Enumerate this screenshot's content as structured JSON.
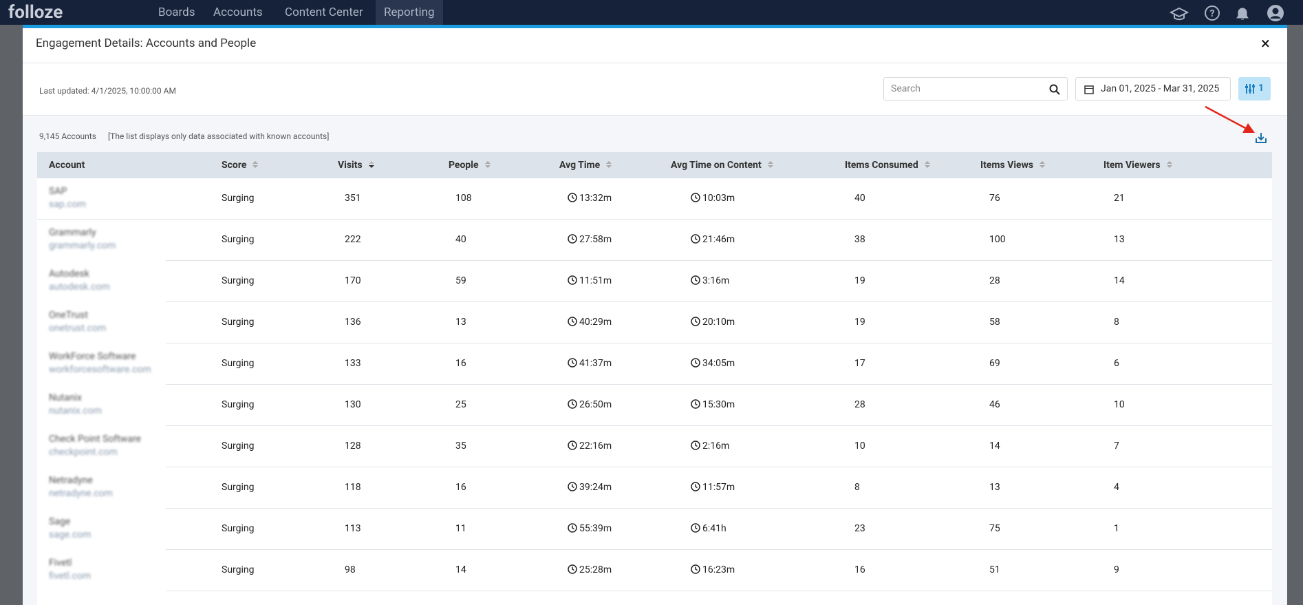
{
  "nav": {
    "logo": "folloze",
    "items": [
      "Boards",
      "Accounts",
      "Content Center",
      "Reporting"
    ],
    "active": 3
  },
  "modal": {
    "title": "Engagement Details: Accounts and People",
    "close": "×",
    "last_updated": "Last updated: 4/1/2025, 10:00:00 AM",
    "search_placeholder": "Search",
    "date_range": "Jan 01, 2025 - Mar 31, 2025",
    "filter_count": "1",
    "account_count": "9,145 Accounts",
    "note": "[The list displays only data associated with known accounts]"
  },
  "table": {
    "columns": [
      "Account",
      "Score",
      "Visits",
      "People",
      "Avg Time",
      "Avg Time on Content",
      "Items Consumed",
      "Items Views",
      "Item Viewers"
    ],
    "sorted_column": 2,
    "rows": [
      [
        "SAP",
        "sap.com",
        "Surging",
        351,
        108,
        "13:32m",
        "10:03m",
        40,
        76,
        21
      ],
      [
        "Grammarly",
        "grammarly.com",
        "Surging",
        222,
        40,
        "27:58m",
        "21:46m",
        38,
        100,
        13
      ],
      [
        "Autodesk",
        "autodesk.com",
        "Surging",
        170,
        59,
        "11:51m",
        "3:16m",
        19,
        28,
        14
      ],
      [
        "OneTrust",
        "onetrust.com",
        "Surging",
        136,
        13,
        "40:29m",
        "20:10m",
        19,
        58,
        8
      ],
      [
        "WorkForce Software",
        "workforcesoftware.com",
        "Surging",
        133,
        16,
        "41:37m",
        "34:05m",
        17,
        69,
        6
      ],
      [
        "Nutanix",
        "nutanix.com",
        "Surging",
        130,
        25,
        "26:50m",
        "15:30m",
        28,
        46,
        10
      ],
      [
        "Check Point Software",
        "checkpoint.com",
        "Surging",
        128,
        35,
        "22:16m",
        "2:16m",
        10,
        14,
        7
      ],
      [
        "Netradyne",
        "netradyne.com",
        "Surging",
        118,
        16,
        "39:24m",
        "11:57m",
        8,
        13,
        4
      ],
      [
        "Sage",
        "sage.com",
        "Surging",
        113,
        11,
        "55:39m",
        "6:41h",
        23,
        75,
        1
      ],
      [
        "Fivetl",
        "fivetl.com",
        "Surging",
        98,
        14,
        "25:28m",
        "16:23m",
        16,
        51,
        9
      ]
    ]
  }
}
